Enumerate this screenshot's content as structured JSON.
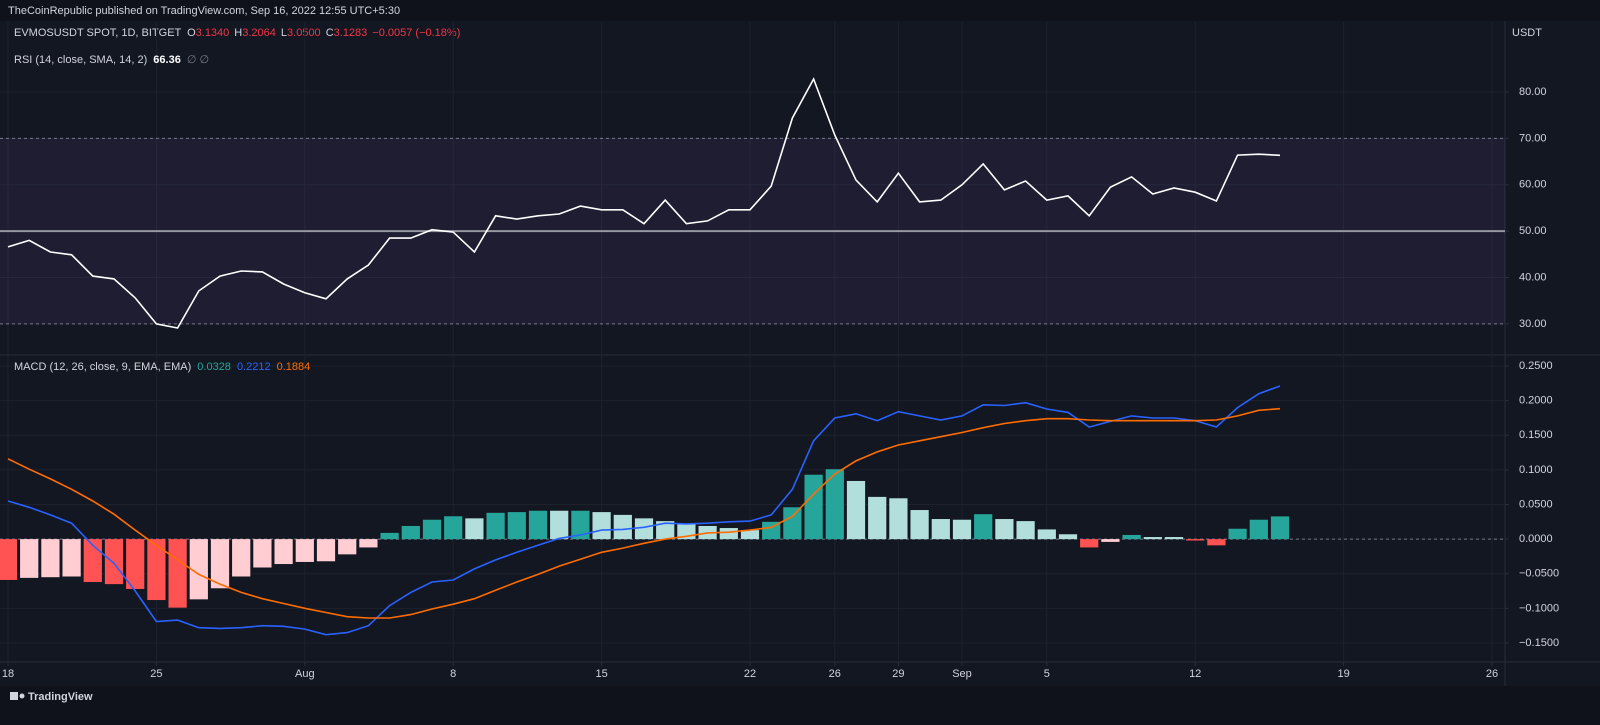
{
  "header": {
    "published": "TheCoinRepublic published on TradingView.com, Sep 16, 2022 12:55 UTC+5:30",
    "symbol": "EVMOSUSDT SPOT, 1D, BITGET",
    "ohlc": [
      {
        "key": "O",
        "value": "3.1340"
      },
      {
        "key": "H",
        "value": "3.2064"
      },
      {
        "key": "L",
        "value": "3.0500"
      },
      {
        "key": "C",
        "value": "3.1283"
      }
    ],
    "change": "−0.0057 (−0.18%)",
    "currency": "USDT"
  },
  "footer": {
    "brand": "TradingView"
  },
  "chart_data": [
    {
      "type": "line",
      "legend": "RSI (14, close, SMA, 14, 2)",
      "legend_values": [
        "66.36",
        "∅ ∅"
      ],
      "color": "#ffffff",
      "values": [
        46.6,
        48,
        45.5,
        44.9,
        40.3,
        39.7,
        35.6,
        30,
        29.1,
        37.1,
        40.3,
        41.4,
        41.2,
        38.6,
        36.7,
        35.4,
        39.7,
        42.7,
        48.5,
        48.5,
        50.3,
        49.8,
        45.5,
        53.3,
        52.6,
        53.3,
        53.7,
        55.4,
        54.6,
        54.6,
        51.6,
        56.7,
        51.6,
        52.2,
        54.6,
        54.6,
        59.7,
        74.4,
        82.8,
        70.7,
        61,
        56.3,
        62.5,
        56.3,
        56.7,
        60,
        64.5,
        58.9,
        60.8,
        56.7,
        57.6,
        53.3,
        59.5,
        61.7,
        58,
        59.3,
        58.4,
        56.5,
        66.4,
        66.6,
        66.36,
        null,
        null,
        null,
        null,
        null,
        null,
        null,
        null,
        null,
        null
      ],
      "band": [
        30,
        70
      ],
      "band_color": "#7e57c2",
      "midline": 50,
      "ylim": [
        23.5,
        95.1
      ],
      "yticks": [
        {
          "value": 30,
          "label": "30.00"
        },
        {
          "value": 40,
          "label": "40.00"
        },
        {
          "value": 50,
          "label": "50.00"
        },
        {
          "value": 60,
          "label": "60.00"
        },
        {
          "value": 70,
          "label": "70.00"
        },
        {
          "value": 80,
          "label": "80.00"
        }
      ],
      "grid": true
    },
    {
      "type": "combo",
      "legend": "MACD (12, 26, close, 9, EMA, EMA)",
      "categories": [
        "18",
        null,
        null,
        null,
        null,
        null,
        null,
        "25",
        null,
        null,
        null,
        null,
        null,
        null,
        "Aug",
        null,
        null,
        null,
        null,
        null,
        null,
        "8",
        null,
        null,
        null,
        null,
        null,
        null,
        "15",
        null,
        null,
        null,
        null,
        null,
        null,
        "22",
        null,
        null,
        null,
        "26",
        null,
        null,
        "29",
        null,
        null,
        "Sep",
        null,
        null,
        null,
        "5",
        null,
        null,
        null,
        null,
        null,
        null,
        "12",
        null,
        null,
        null,
        null,
        null,
        null,
        "19",
        null,
        null,
        null,
        null,
        null,
        null,
        "26"
      ],
      "histogram": {
        "legend_value": "0.0328",
        "color": "#26a69a",
        "values": [
          -0.059,
          -0.056,
          -0.055,
          -0.054,
          -0.062,
          -0.065,
          -0.072,
          -0.088,
          -0.099,
          -0.087,
          -0.071,
          -0.054,
          -0.041,
          -0.036,
          -0.033,
          -0.032,
          -0.022,
          -0.012,
          0.009,
          0.019,
          0.028,
          0.033,
          0.03,
          0.038,
          0.039,
          0.041,
          0.041,
          0.041,
          0.039,
          0.035,
          0.03,
          0.026,
          0.022,
          0.019,
          0.016,
          0.013,
          0.025,
          0.046,
          0.093,
          0.101,
          0.084,
          0.061,
          0.059,
          0.042,
          0.029,
          0.028,
          0.036,
          0.029,
          0.026,
          0.014,
          0.007,
          -0.012,
          -0.004,
          0.006,
          0.003,
          0.003,
          -0.002,
          -0.009,
          0.015,
          0.028,
          0.0328,
          null,
          null,
          null,
          null,
          null,
          null,
          null,
          null,
          null,
          null
        ],
        "colors": [
          "#ff5252",
          "#ffcdd2",
          "#ffcdd2",
          "#ffcdd2",
          "#ff5252",
          "#ff5252",
          "#ff5252",
          "#ff5252",
          "#ff5252",
          "#ffcdd2",
          "#ffcdd2",
          "#ffcdd2",
          "#ffcdd2",
          "#ffcdd2",
          "#ffcdd2",
          "#ffcdd2",
          "#ffcdd2",
          "#ffcdd2",
          "#26a69a",
          "#26a69a",
          "#26a69a",
          "#26a69a",
          "#b2dfdb",
          "#26a69a",
          "#26a69a",
          "#26a69a",
          "#b2dfdb",
          "#26a69a",
          "#b2dfdb",
          "#b2dfdb",
          "#b2dfdb",
          "#b2dfdb",
          "#b2dfdb",
          "#b2dfdb",
          "#b2dfdb",
          "#b2dfdb",
          "#26a69a",
          "#26a69a",
          "#26a69a",
          "#26a69a",
          "#b2dfdb",
          "#b2dfdb",
          "#b2dfdb",
          "#b2dfdb",
          "#b2dfdb",
          "#b2dfdb",
          "#26a69a",
          "#b2dfdb",
          "#b2dfdb",
          "#b2dfdb",
          "#b2dfdb",
          "#ff5252",
          "#ffcdd2",
          "#26a69a",
          "#b2dfdb",
          "#b2dfdb",
          "#ff5252",
          "#ff5252",
          "#26a69a",
          "#26a69a",
          "#26a69a",
          null,
          null,
          null,
          null,
          null,
          null,
          null,
          null,
          null,
          null
        ]
      },
      "macd": {
        "legend_value": "0.2212",
        "color": "#2962ff",
        "values": [
          0.055,
          0.046,
          0.035,
          0.023,
          -0.009,
          -0.035,
          -0.075,
          -0.119,
          -0.117,
          -0.128,
          -0.129,
          -0.128,
          -0.125,
          -0.126,
          -0.13,
          -0.138,
          -0.135,
          -0.125,
          -0.096,
          -0.077,
          -0.062,
          -0.059,
          -0.043,
          -0.03,
          -0.019,
          -0.009,
          0.001,
          0.006,
          0.013,
          0.014,
          0.017,
          0.023,
          0.022,
          0.023,
          0.025,
          0.026,
          0.035,
          0.072,
          0.142,
          0.175,
          0.181,
          0.171,
          0.184,
          0.178,
          0.172,
          0.178,
          0.194,
          0.193,
          0.197,
          0.188,
          0.183,
          0.162,
          0.17,
          0.178,
          0.175,
          0.175,
          0.171,
          0.162,
          0.19,
          0.21,
          0.2212,
          null,
          null,
          null,
          null,
          null,
          null,
          null,
          null,
          null,
          null
        ]
      },
      "signal": {
        "legend_value": "0.1884",
        "color": "#ff6d00",
        "values": [
          0.116,
          0.101,
          0.087,
          0.072,
          0.055,
          0.036,
          0.013,
          -0.009,
          -0.03,
          -0.051,
          -0.065,
          -0.077,
          -0.086,
          -0.093,
          -0.1,
          -0.106,
          -0.112,
          -0.114,
          -0.114,
          -0.109,
          -0.101,
          -0.094,
          -0.086,
          -0.074,
          -0.062,
          -0.051,
          -0.039,
          -0.029,
          -0.019,
          -0.013,
          -0.006,
          0.0,
          0.004,
          0.009,
          0.01,
          0.013,
          0.017,
          0.033,
          0.065,
          0.094,
          0.113,
          0.126,
          0.136,
          0.142,
          0.148,
          0.154,
          0.161,
          0.167,
          0.171,
          0.174,
          0.174,
          0.172,
          0.171,
          0.171,
          0.171,
          0.171,
          0.171,
          0.172,
          0.178,
          0.186,
          0.1884,
          null,
          null,
          null,
          null,
          null,
          null,
          null,
          null,
          null,
          null
        ]
      },
      "zero_line": 0,
      "ylim": [
        -0.1775,
        0.2645
      ],
      "yticks": [
        {
          "value": 0.25,
          "label": "0.2500"
        },
        {
          "value": 0.2,
          "label": "0.2000"
        },
        {
          "value": 0.15,
          "label": "0.1500"
        },
        {
          "value": 0.1,
          "label": "0.1000"
        },
        {
          "value": 0.05,
          "label": "0.0500"
        },
        {
          "value": 0,
          "label": "0.0000"
        },
        {
          "value": -0.05,
          "label": "−0.0500"
        },
        {
          "value": -0.1,
          "label": "−0.1000"
        },
        {
          "value": -0.15,
          "label": "−0.1500"
        }
      ],
      "grid": true
    }
  ]
}
